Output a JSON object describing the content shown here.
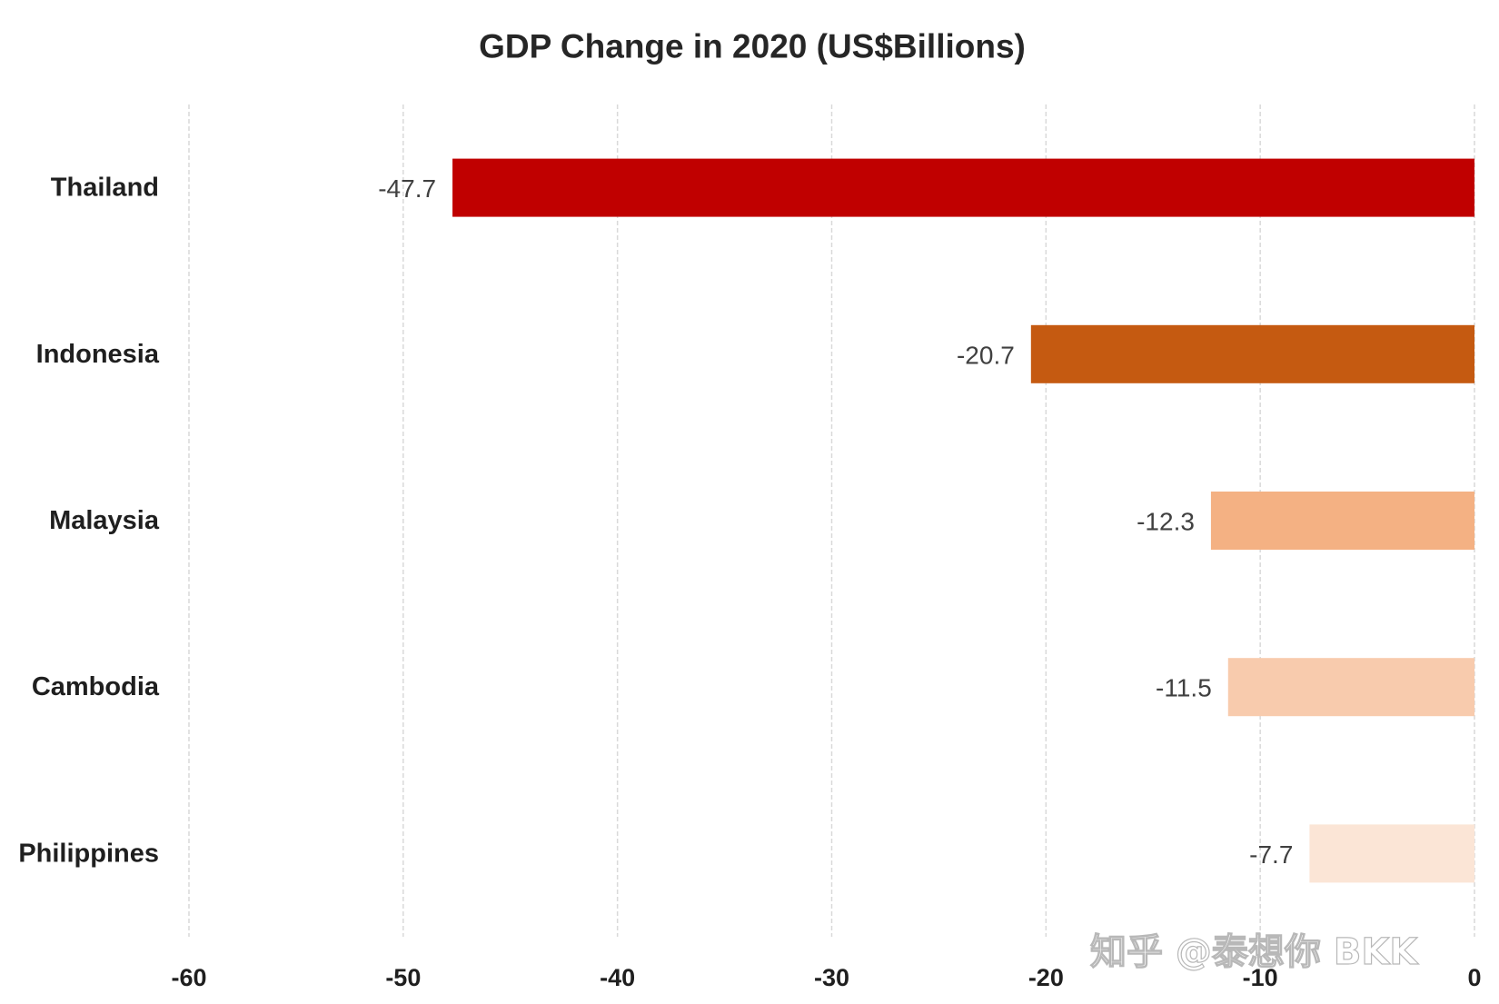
{
  "chart_data": {
    "type": "bar",
    "horizontal": true,
    "title": "GDP Change in 2020 (US$Billions)",
    "categories": [
      "Thailand",
      "Indonesia",
      "Malaysia",
      "Cambodia",
      "Philippines"
    ],
    "values": [
      -47.7,
      -20.7,
      -12.3,
      -11.5,
      -7.7
    ],
    "colors": [
      "#C00000",
      "#C55A11",
      "#F4B183",
      "#F8CBAD",
      "#FBE5D6"
    ],
    "xlim": [
      -60,
      0
    ],
    "xticks": [
      -60,
      -50,
      -40,
      -30,
      -20,
      -10,
      0
    ],
    "grid": true,
    "legend": false
  },
  "watermark": "知乎 @泰想你 BKK"
}
